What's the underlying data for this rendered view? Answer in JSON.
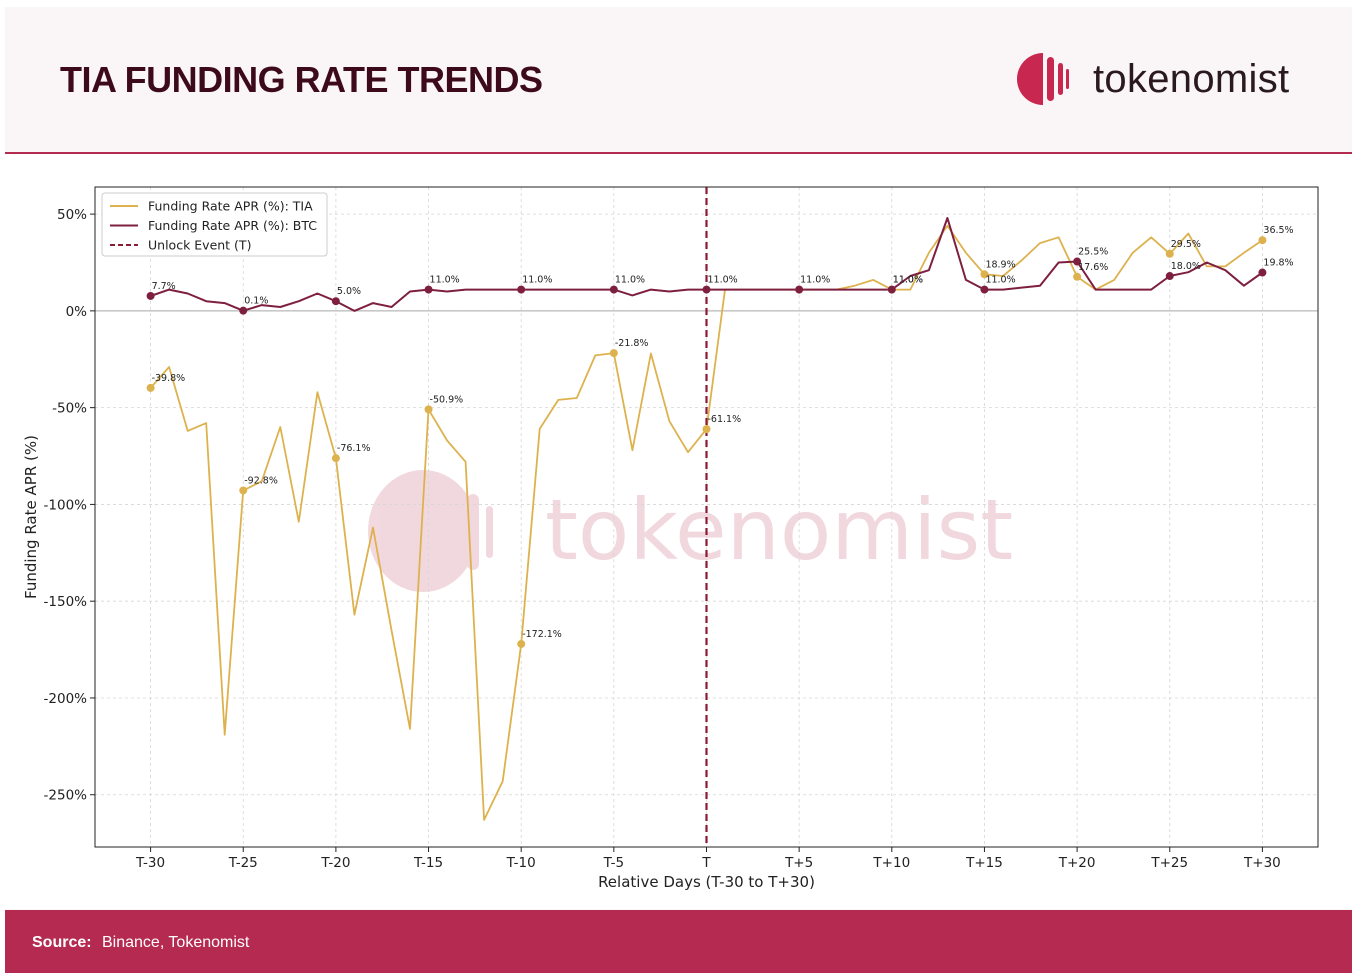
{
  "header": {
    "title": "TIA FUNDING RATE TRENDS",
    "brand": "tokenomist",
    "brand_icon": "tokenomist-logo-icon"
  },
  "watermark": "tokenomist",
  "footer": {
    "source_label": "Source:",
    "source_value": "Binance, Tokenomist"
  },
  "colors": {
    "accent": "#b52a50",
    "title": "#3d0a1c",
    "tia": "#ddb24e",
    "btc": "#7e1f40",
    "unlock": "#8b1a35"
  },
  "chart_data": {
    "type": "line",
    "title": "",
    "xlabel": "Relative Days (T-30 to T+30)",
    "ylabel": "Funding Rate APR (%)",
    "xlim": [
      -33,
      33
    ],
    "ylim": [
      -277,
      64
    ],
    "yticks": [
      50,
      0,
      -50,
      -100,
      -150,
      -200,
      -250
    ],
    "ytick_labels": [
      "50%",
      "0%",
      "-50%",
      "-100%",
      "-150%",
      "-200%",
      "-250%"
    ],
    "xticks": [
      -30,
      -25,
      -20,
      -15,
      -10,
      -5,
      0,
      5,
      10,
      15,
      20,
      25,
      30
    ],
    "xtick_labels": [
      "T-30",
      "T-25",
      "T-20",
      "T-15",
      "T-10",
      "T-5",
      "T",
      "T+5",
      "T+10",
      "T+15",
      "T+20",
      "T+25",
      "T+30"
    ],
    "grid": true,
    "legend_position": "top-left",
    "x": [
      -30,
      -29,
      -28,
      -27,
      -26,
      -25,
      -24,
      -23,
      -22,
      -21,
      -20,
      -19,
      -18,
      -17,
      -16,
      -15,
      -14,
      -13,
      -12,
      -11,
      -10,
      -9,
      -8,
      -7,
      -6,
      -5,
      -4,
      -3,
      -2,
      -1,
      0,
      1,
      2,
      3,
      4,
      5,
      6,
      7,
      8,
      9,
      10,
      11,
      12,
      13,
      14,
      15,
      16,
      17,
      18,
      19,
      20,
      21,
      22,
      23,
      24,
      25,
      26,
      27,
      28,
      29,
      30
    ],
    "series": [
      {
        "name": "Funding Rate APR (%): TIA",
        "color": "#ddb24e",
        "values": [
          -39.8,
          -29,
          -62,
          -58,
          -219,
          -92.8,
          -88,
          -60,
          -109,
          -42,
          -76.1,
          -157,
          -112,
          -165,
          -216,
          -50.9,
          -67,
          -78,
          -263,
          -243,
          -172.1,
          -61,
          -46,
          -45,
          -23,
          -21.8,
          -72,
          -22,
          -57,
          -73,
          -61.1,
          11,
          11,
          11,
          11,
          11,
          11,
          11,
          13,
          16,
          11,
          11,
          30,
          44,
          30,
          18.9,
          18,
          26,
          35,
          38,
          17.6,
          11,
          16,
          30,
          38,
          29.5,
          40,
          23,
          23,
          30,
          36.5
        ],
        "labels": [
          {
            "x": -30,
            "text": "-39.8%"
          },
          {
            "x": -25,
            "text": "-92.8%"
          },
          {
            "x": -20,
            "text": "-76.1%"
          },
          {
            "x": -15,
            "text": "-50.9%"
          },
          {
            "x": -10,
            "text": "-172.1%"
          },
          {
            "x": -5,
            "text": "-21.8%"
          },
          {
            "x": 0,
            "text": "-61.1%"
          },
          {
            "x": 5,
            "text": "11.0%"
          },
          {
            "x": 10,
            "text": "11.0%"
          },
          {
            "x": 15,
            "text": "18.9%"
          },
          {
            "x": 20,
            "text": "17.6%"
          },
          {
            "x": 25,
            "text": "29.5%"
          },
          {
            "x": 30,
            "text": "36.5%"
          }
        ]
      },
      {
        "name": "Funding Rate APR (%): BTC",
        "color": "#7e1f40",
        "values": [
          7.7,
          11,
          9,
          5,
          4,
          0.1,
          3,
          2,
          5,
          9,
          5.0,
          0,
          4,
          2,
          10,
          11.0,
          10,
          11,
          11,
          11,
          11.0,
          11,
          11,
          11,
          11,
          11.0,
          8,
          11,
          10,
          11,
          11.0,
          11,
          11,
          11,
          11,
          11,
          11,
          11,
          11,
          11,
          11,
          18,
          21,
          48,
          16,
          11.0,
          11,
          12,
          13,
          25,
          25.5,
          11,
          11,
          11,
          11,
          18.0,
          20,
          25,
          21,
          13,
          19.8
        ],
        "labels": [
          {
            "x": -30,
            "text": "7.7%"
          },
          {
            "x": -25,
            "text": "0.1%"
          },
          {
            "x": -20,
            "text": "5.0%"
          },
          {
            "x": -15,
            "text": "11.0%"
          },
          {
            "x": -10,
            "text": "11.0%"
          },
          {
            "x": -5,
            "text": "11.0%"
          },
          {
            "x": 0,
            "text": "11.0%"
          },
          {
            "x": 10,
            "text": "11.0%"
          },
          {
            "x": 15,
            "text": "11.0%"
          },
          {
            "x": 20,
            "text": "25.5%"
          },
          {
            "x": 25,
            "text": "18.0%"
          },
          {
            "x": 30,
            "text": "19.8%"
          }
        ]
      }
    ],
    "annotations": [
      {
        "type": "vline",
        "x": 0,
        "label": "Unlock Event (T)",
        "style": "dashed",
        "color": "#8b1a35"
      }
    ]
  }
}
